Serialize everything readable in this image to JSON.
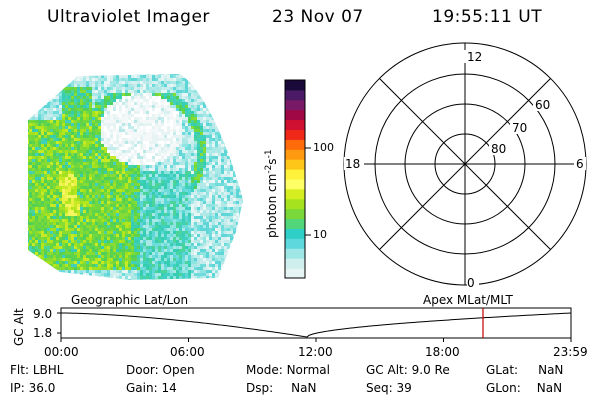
{
  "header": {
    "title": "Ultraviolet Imager",
    "date": "23 Nov 07",
    "time": "19:55:11 UT"
  },
  "colorbar": {
    "label": "photon cm",
    "label_sup1": "-2",
    "label_mid": "s",
    "label_sup2": "-1",
    "ticks": [
      "100",
      "10"
    ],
    "colors": [
      "#e6f4f4",
      "#cfeeee",
      "#9fe7e6",
      "#5fd8dd",
      "#2fcfc8",
      "#52d67a",
      "#7ad83a",
      "#a6e21e",
      "#d4ee20",
      "#ffff66",
      "#fff23a",
      "#ffc61a",
      "#ff9a10",
      "#ff6a0a",
      "#f0281a",
      "#d01030",
      "#a00845",
      "#7a1a66",
      "#4a1a66",
      "#1a0a3a"
    ]
  },
  "polar": {
    "mlt_labels": {
      "top": "12",
      "left": "18",
      "right": "6",
      "bottom": "0"
    },
    "lat_labels": [
      "60",
      "70",
      "80"
    ]
  },
  "timeline": {
    "left_label": "Geographic Lat/Lon",
    "right_label": "Apex  MLat/MLT",
    "axis_name": "GC Alt",
    "y_ticks": [
      "9.0",
      "1.8"
    ],
    "x_ticks": [
      "00:00",
      "06:00",
      "12:00",
      "18:00",
      "23:59"
    ],
    "marker_color": "#c00000"
  },
  "info": {
    "flt_label": "Flt:",
    "flt_value": "LBHL",
    "door_label": "Door:",
    "door_value": "Open",
    "mode_label": "Mode:",
    "mode_value": "Normal",
    "gcalt_label": "GC Alt:",
    "gcalt_value": "9.0 Re",
    "glat_label": "GLat:",
    "glat_value": "NaN",
    "ip_label": "IP:",
    "ip_value": "36.0",
    "gain_label": "Gain:",
    "gain_value": "14",
    "dsp_label": "Dsp:",
    "dsp_value": "NaN",
    "seq_label": "Seq:",
    "seq_value": "39",
    "glon_label": "GLon:",
    "glon_value": "NaN"
  }
}
